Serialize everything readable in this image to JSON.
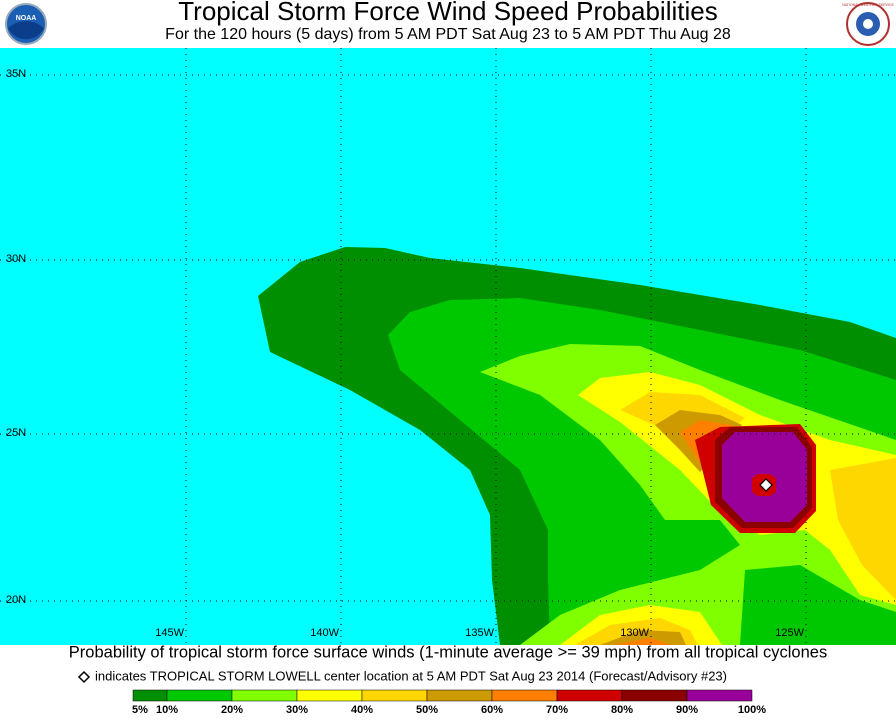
{
  "header": {
    "title": "Tropical Storm Force Wind Speed Probabilities",
    "subtitle": "For the 120 hours (5 days) from 5 AM PDT Sat Aug 23 to 5 AM PDT Thu Aug 28",
    "left_logo": "NOAA",
    "right_logo": "NATIONAL WEATHER SERVICE"
  },
  "map": {
    "background": "#00ffff",
    "lat_labels": [
      "35N",
      "30N",
      "25N",
      "20N"
    ],
    "lon_labels": [
      "145W",
      "140W",
      "135W",
      "130W",
      "125W"
    ]
  },
  "caption": "Probability of tropical storm force surface winds (1-minute average >= 39 mph) from all tropical cyclones",
  "note": "indicates TROPICAL STORM LOWELL center location at 5 AM PDT Sat Aug 23 2014 (Forecast/Advisory #23)",
  "legend": {
    "colors": [
      "#008f00",
      "#00c800",
      "#80ff00",
      "#ffff00",
      "#ffd700",
      "#cd9a00",
      "#ff8000",
      "#d00000",
      "#8b0000",
      "#990099"
    ],
    "labels": [
      "5%",
      "10%",
      "20%",
      "30%",
      "40%",
      "50%",
      "60%",
      "70%",
      "80%",
      "90%",
      "100%"
    ]
  }
}
